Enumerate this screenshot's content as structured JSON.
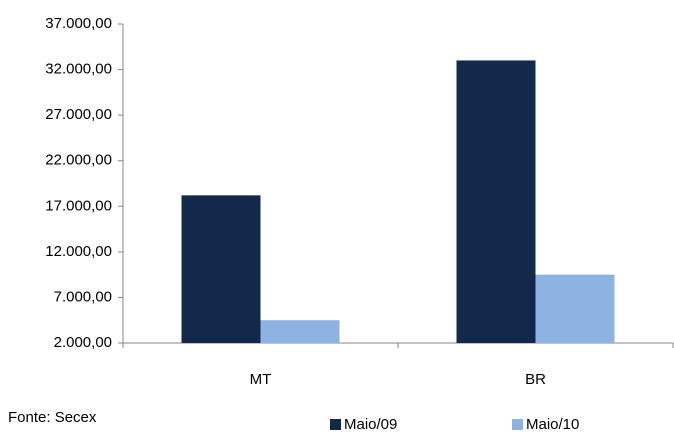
{
  "chart_data": {
    "type": "bar",
    "categories": [
      "MT",
      "BR"
    ],
    "series": [
      {
        "name": "Maio/09",
        "color": "#13294b",
        "values": [
          18200,
          33000
        ]
      },
      {
        "name": "Maio/10",
        "color": "#8db3e2",
        "values": [
          4500,
          9500
        ]
      }
    ],
    "ylim": [
      2000,
      37000
    ],
    "yticks": [
      {
        "value": 2000,
        "label": "2.000,00"
      },
      {
        "value": 7000,
        "label": "7.000,00"
      },
      {
        "value": 12000,
        "label": "12.000,00"
      },
      {
        "value": 17000,
        "label": "17.000,00"
      },
      {
        "value": 22000,
        "label": "22.000,00"
      },
      {
        "value": 27000,
        "label": "27.000,00"
      },
      {
        "value": 32000,
        "label": "32.000,00"
      },
      {
        "value": 37000,
        "label": "37.000,00"
      }
    ],
    "grid": false,
    "annotation": "Fonte:  Secex"
  }
}
